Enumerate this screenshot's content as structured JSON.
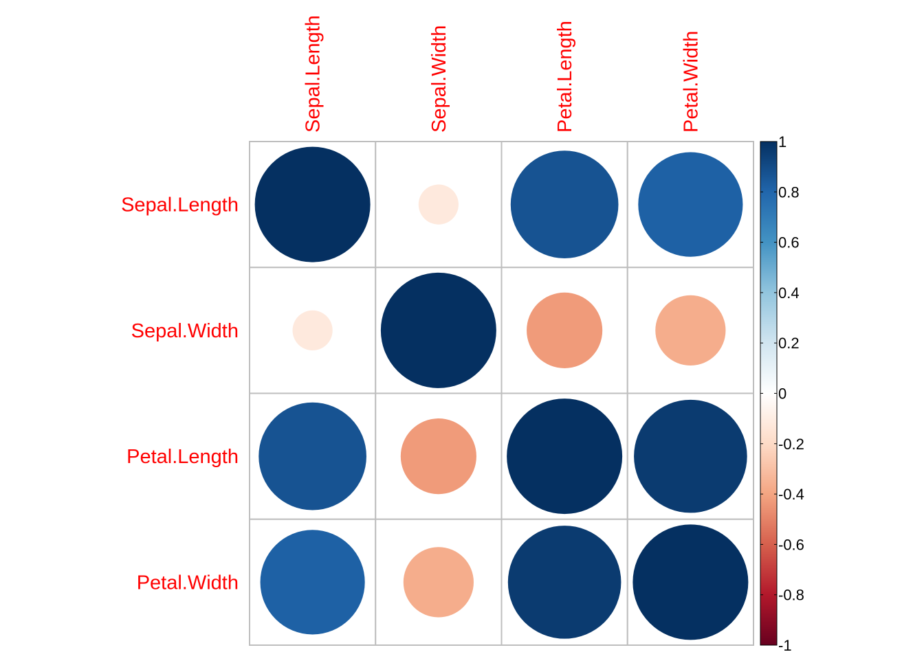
{
  "chart_data": {
    "type": "heatmap",
    "variables": [
      "Sepal.Length",
      "Sepal.Width",
      "Petal.Length",
      "Petal.Width"
    ],
    "matrix": [
      [
        1.0,
        -0.12,
        0.87,
        0.82
      ],
      [
        -0.12,
        1.0,
        -0.43,
        -0.37
      ],
      [
        0.87,
        -0.43,
        1.0,
        0.96
      ],
      [
        0.82,
        -0.37,
        0.96,
        1.0
      ]
    ],
    "colorbar": {
      "range": [
        -1,
        1
      ],
      "ticks": [
        "1",
        "0.8",
        "0.6",
        "0.4",
        "0.2",
        "0",
        "-0.2",
        "-0.4",
        "-0.6",
        "-0.8",
        "-1"
      ],
      "tick_values": [
        1,
        0.8,
        0.6,
        0.4,
        0.2,
        0,
        -0.2,
        -0.4,
        -0.6,
        -0.8,
        -1
      ],
      "stops": [
        {
          "v": -1.0,
          "color": "#67001f"
        },
        {
          "v": -0.8,
          "color": "#b2182b"
        },
        {
          "v": -0.6,
          "color": "#d6604d"
        },
        {
          "v": -0.4,
          "color": "#f4a582"
        },
        {
          "v": -0.2,
          "color": "#fddbc7"
        },
        {
          "v": 0.0,
          "color": "#ffffff"
        },
        {
          "v": 0.2,
          "color": "#d1e5f0"
        },
        {
          "v": 0.4,
          "color": "#92c5de"
        },
        {
          "v": 0.6,
          "color": "#4393c3"
        },
        {
          "v": 0.8,
          "color": "#2166ac"
        },
        {
          "v": 1.0,
          "color": "#053061"
        }
      ]
    },
    "label_color": "#ff0000",
    "grid": true,
    "legend_position": "right",
    "title": "",
    "xlabel": "",
    "ylabel": ""
  }
}
